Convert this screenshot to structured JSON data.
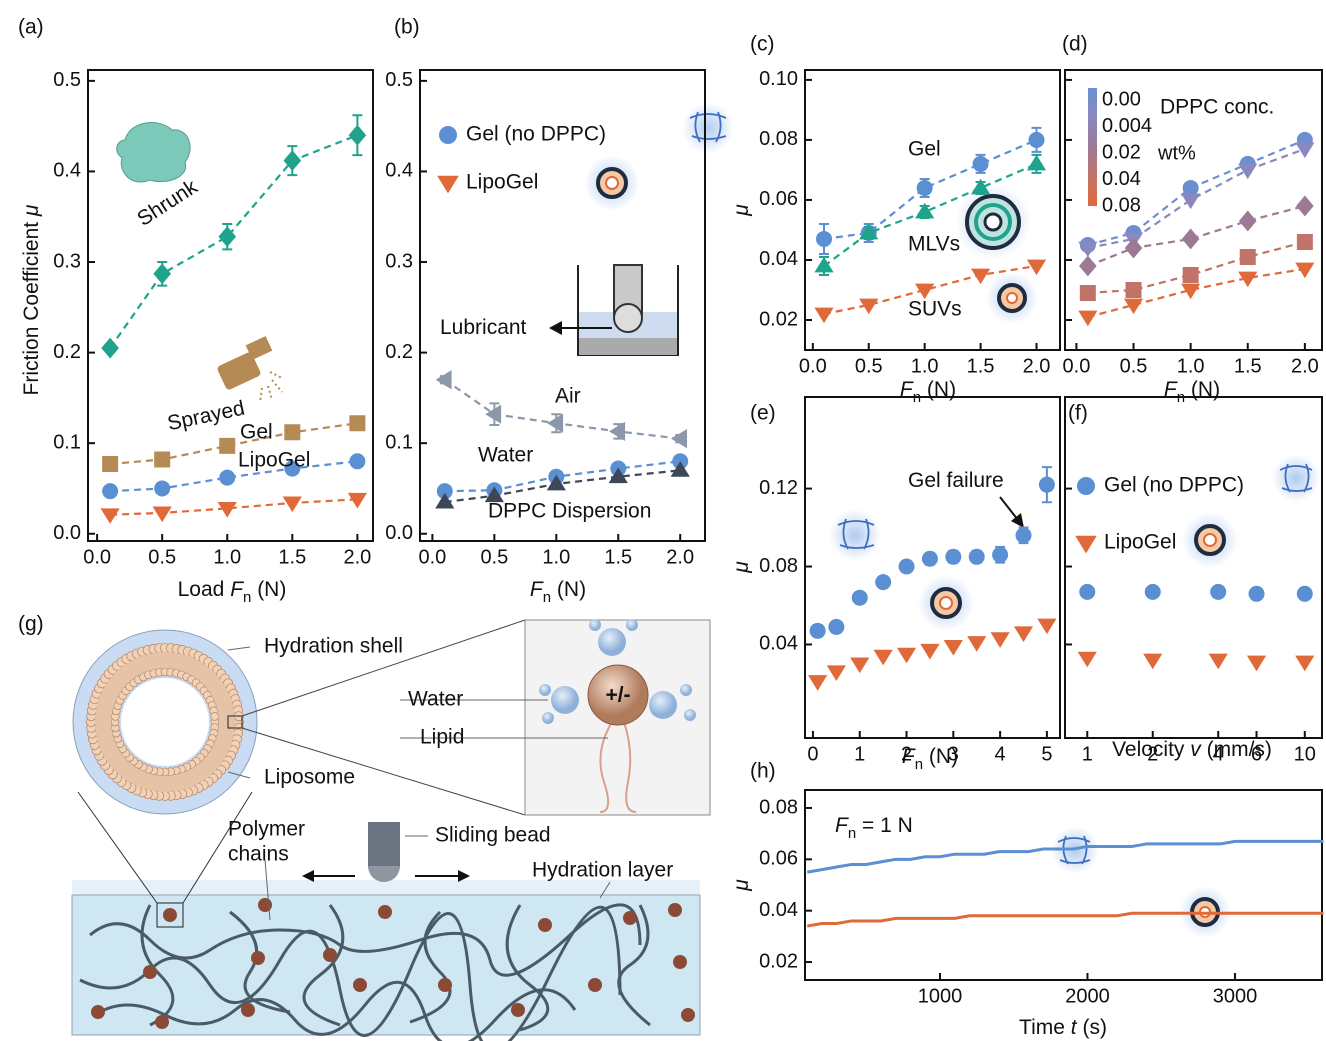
{
  "chart_data": [
    {
      "type": "scatter",
      "panel": "(a)",
      "xlabel": [
        {
          "text": "Load "
        },
        {
          "text": "F",
          "style": "italic"
        },
        {
          "text": "n",
          "style": "sub"
        },
        {
          "text": " (N)"
        }
      ],
      "ylabel": [
        {
          "text": "Friction Coefficient "
        },
        {
          "text": "μ",
          "style": "italic"
        }
      ],
      "xlim": [
        -0.07,
        2.12
      ],
      "ylim": [
        -0.008,
        0.512
      ],
      "xticks": [
        {
          "value": 0,
          "label": "0.0"
        },
        0.5,
        {
          "value": 1,
          "label": "1.0"
        },
        1.5,
        {
          "value": 2,
          "label": "2.0"
        }
      ],
      "yticks": [
        {
          "value": 0,
          "label": "0.0"
        },
        0.1,
        0.2,
        0.3,
        0.4,
        0.5
      ],
      "x": [
        0.1,
        0.5,
        1,
        1.5,
        2
      ],
      "series": [
        {
          "name": "Shrunk",
          "color": "#1fa38c",
          "marker": "diamond",
          "dashed": true,
          "values": [
            0.205,
            0.287,
            0.328,
            0.412,
            0.44
          ],
          "errors": [
            0.004,
            0.013,
            0.014,
            0.016,
            0.022
          ]
        },
        {
          "name": "Sprayed",
          "color": "#b58a55",
          "marker": "square",
          "dashed": true,
          "values": [
            0.077,
            0.082,
            0.097,
            0.112,
            0.122
          ]
        },
        {
          "name": "Gel",
          "color": "#5b8fd3",
          "marker": "circle",
          "dashed": true,
          "values": [
            0.047,
            0.05,
            0.062,
            0.072,
            0.08
          ]
        },
        {
          "name": "LipoGel",
          "color": "#e0693a",
          "marker": "triangle-down",
          "dashed": true,
          "values": [
            0.021,
            0.023,
            0.028,
            0.034,
            0.038
          ]
        }
      ]
    },
    {
      "type": "scatter",
      "panel": "(b)",
      "xlabel": [
        {
          "text": "F",
          "style": "italic"
        },
        {
          "text": "n",
          "style": "sub"
        },
        {
          "text": " (N)"
        }
      ],
      "xlim": [
        -0.1,
        2.2
      ],
      "ylim": [
        -0.008,
        0.512
      ],
      "xticks": [
        {
          "value": 0,
          "label": "0.0"
        },
        0.5,
        {
          "value": 1,
          "label": "1.0"
        },
        1.5,
        {
          "value": 2,
          "label": "2.0"
        }
      ],
      "yticks": [
        {
          "value": 0,
          "label": "0.0"
        },
        0.1,
        0.2,
        0.3,
        0.4,
        0.5
      ],
      "x": [
        0.1,
        0.5,
        1,
        1.5,
        2
      ],
      "series": [
        {
          "name": "Air",
          "color": "#8c98aa",
          "marker": "triangle-left",
          "dashed": true,
          "values": [
            0.17,
            0.132,
            0.122,
            0.113,
            0.105
          ],
          "errors": [
            0.004,
            0.012,
            0.01,
            0.008,
            0.004
          ]
        },
        {
          "name": "Water",
          "color": "#5b8fd3",
          "marker": "circle",
          "dashed": true,
          "values": [
            0.047,
            0.048,
            0.063,
            0.072,
            0.08
          ]
        },
        {
          "name": "DPPC Dispersion",
          "color": "#3d4756",
          "marker": "triangle-up",
          "dashed": true,
          "values": [
            0.035,
            0.042,
            0.055,
            0.063,
            0.07
          ]
        }
      ],
      "legend": [
        {
          "name": "Gel (no DPPC)",
          "color": "#5b8fd3",
          "marker": "circle"
        },
        {
          "name": "LipoGel",
          "color": "#e0693a",
          "marker": "triangle-down"
        }
      ],
      "annotations": [
        [
          {
            "text": "Lubricant"
          }
        ]
      ]
    },
    {
      "type": "scatter",
      "panel": "(c)",
      "xlabel": [
        {
          "text": "F",
          "style": "italic"
        },
        {
          "text": "n",
          "style": "sub"
        },
        {
          "text": " (N)"
        }
      ],
      "ylabel": [
        {
          "text": "μ",
          "style": "italic"
        }
      ],
      "xlim": [
        -0.07,
        2.21
      ],
      "ylim": [
        0.01,
        0.1033
      ],
      "xticks": [
        {
          "value": 0,
          "label": "0.0"
        },
        0.5,
        {
          "value": 1,
          "label": "1.0"
        },
        1.5,
        {
          "value": 2,
          "label": "2.0"
        }
      ],
      "yticks": [
        0.02,
        0.04,
        0.06,
        0.08,
        {
          "value": 0.1,
          "label": "0.10"
        }
      ],
      "x": [
        0.1,
        0.5,
        1,
        1.5,
        2
      ],
      "series": [
        {
          "name": "Gel",
          "color": "#5b8fd3",
          "marker": "circle",
          "dashed": true,
          "values": [
            0.047,
            0.049,
            0.064,
            0.072,
            0.08
          ],
          "errors": [
            0.005,
            0.003,
            0.003,
            0.003,
            0.004
          ]
        },
        {
          "name": "MLVs",
          "color": "#1fa38c",
          "marker": "triangle-up",
          "dashed": true,
          "values": [
            0.038,
            0.049,
            0.056,
            0.064,
            0.072
          ],
          "errors": [
            0.003,
            0.002,
            0.002,
            0.002,
            0.003
          ]
        },
        {
          "name": "SUVs",
          "color": "#e0693a",
          "marker": "triangle-down",
          "dashed": true,
          "values": [
            0.022,
            0.025,
            0.03,
            0.035,
            0.038
          ]
        }
      ]
    },
    {
      "type": "scatter",
      "panel": "(d)",
      "xlabel": [
        {
          "text": "F",
          "style": "italic"
        },
        {
          "text": "n",
          "style": "sub"
        },
        {
          "text": " (N)"
        }
      ],
      "xlim": [
        -0.1,
        2.15
      ],
      "ylim": [
        0.01,
        0.1033
      ],
      "xticks": [
        {
          "value": 0,
          "label": "0.0"
        },
        0.5,
        {
          "value": 1,
          "label": "1.0"
        },
        1.5,
        {
          "value": 2,
          "label": "2.0"
        }
      ],
      "yticks": [
        0.02,
        0.04,
        0.06,
        0.08,
        0.1
      ],
      "ytick_labels": false,
      "x": [
        0.1,
        0.5,
        1,
        1.5,
        2
      ],
      "colorbar": {
        "label": "DPPC conc.",
        "unit": "wt%"
      },
      "series": [
        {
          "name": "0.00",
          "color": "#6b8fd0",
          "marker": "circle",
          "dashed": true,
          "values": [
            0.045,
            0.049,
            0.064,
            0.072,
            0.08
          ]
        },
        {
          "name": "0.004",
          "color": "#8a88c0",
          "marker": "triangle-down",
          "dashed": true,
          "values": [
            0.044,
            0.047,
            0.06,
            0.07,
            0.077
          ]
        },
        {
          "name": "0.02",
          "color": "#9c7a96",
          "marker": "diamond",
          "dashed": true,
          "values": [
            0.038,
            0.044,
            0.047,
            0.053,
            0.058
          ]
        },
        {
          "name": "0.04",
          "color": "#c07468",
          "marker": "square",
          "dashed": true,
          "values": [
            0.029,
            0.03,
            0.035,
            0.041,
            0.046
          ]
        },
        {
          "name": "0.08",
          "color": "#e0693a",
          "marker": "triangle-down",
          "dashed": true,
          "values": [
            0.021,
            0.025,
            0.03,
            0.034,
            0.037
          ]
        }
      ]
    },
    {
      "type": "scatter",
      "panel": "(e)",
      "xlabel": [
        {
          "text": "F",
          "style": "italic"
        },
        {
          "text": "n",
          "style": "sub"
        },
        {
          "text": " (N)"
        }
      ],
      "ylabel": [
        {
          "text": "μ",
          "style": "italic"
        }
      ],
      "xlim": [
        -0.17,
        5.28
      ],
      "ylim": [
        -0.008,
        0.167
      ],
      "xticks": [
        0,
        1,
        2,
        3,
        4,
        5
      ],
      "yticks": [
        0.04,
        0.08,
        0.12
      ],
      "x": [
        0.1,
        0.5,
        1,
        1.5,
        2,
        2.5,
        3,
        3.5,
        4,
        4.5,
        5
      ],
      "series": [
        {
          "color": "#5b8fd3",
          "marker": "circle",
          "values": [
            0.047,
            0.049,
            0.064,
            0.072,
            0.08,
            0.084,
            0.085,
            0.085,
            0.086,
            0.096,
            0.122
          ],
          "errors": [
            0.003,
            0.002,
            0.002,
            0.002,
            0.002,
            0.003,
            0.003,
            0.003,
            0.004,
            0.004,
            0.009
          ]
        },
        {
          "color": "#e0693a",
          "marker": "triangle-down",
          "values": [
            0.021,
            0.026,
            0.03,
            0.034,
            0.035,
            0.037,
            0.039,
            0.041,
            0.043,
            0.046,
            0.05
          ]
        }
      ],
      "annotations": [
        [
          {
            "text": "Gel failure"
          }
        ]
      ]
    },
    {
      "type": "scatter",
      "panel": "(f)",
      "xlabel": [
        {
          "text": "Velocity "
        },
        {
          "text": "v",
          "style": "italic"
        },
        {
          "text": " (mm/s)"
        }
      ],
      "xscale": "log",
      "xlim": [
        0.79,
        12
      ],
      "ylim": [
        -0.008,
        0.167
      ],
      "xticks": [
        1,
        2,
        4,
        6,
        10
      ],
      "yticks": [
        0.04,
        0.08,
        0.12
      ],
      "ytick_labels": false,
      "x": [
        1,
        2,
        4,
        6,
        10
      ],
      "series": [
        {
          "name": "Gel (no DPPC)",
          "color": "#5b8fd3",
          "marker": "circle",
          "values": [
            0.067,
            0.067,
            0.067,
            0.066,
            0.066
          ]
        },
        {
          "name": "LipoGel",
          "color": "#e0693a",
          "marker": "triangle-down",
          "values": [
            0.033,
            0.032,
            0.032,
            0.031,
            0.031
          ]
        }
      ]
    },
    {
      "type": "line",
      "panel": "(h)",
      "xlabel": [
        {
          "text": "Time "
        },
        {
          "text": "t",
          "style": "italic"
        },
        {
          "text": " (s)"
        }
      ],
      "ylabel": [
        {
          "text": "μ",
          "style": "italic"
        }
      ],
      "xlim": [
        85,
        3590
      ],
      "ylim": [
        0.013,
        0.087
      ],
      "xticks": [
        1000,
        2000,
        3000
      ],
      "yticks": [
        0.02,
        0.04,
        0.06,
        0.08
      ],
      "x": [
        100,
        200,
        300,
        400,
        500,
        600,
        700,
        800,
        900,
        1000,
        1100,
        1200,
        1300,
        1400,
        1500,
        1600,
        1700,
        1800,
        1900,
        2000,
        2100,
        2200,
        2300,
        2400,
        2500,
        2600,
        2700,
        2800,
        2900,
        3000,
        3100,
        3200,
        3300,
        3400,
        3500,
        3600
      ],
      "series": [
        {
          "color": "#5b8fd3",
          "values": [
            0.055,
            0.056,
            0.057,
            0.058,
            0.058,
            0.059,
            0.06,
            0.06,
            0.061,
            0.061,
            0.062,
            0.062,
            0.062,
            0.063,
            0.063,
            0.063,
            0.064,
            0.064,
            0.064,
            0.065,
            0.065,
            0.065,
            0.065,
            0.066,
            0.066,
            0.066,
            0.066,
            0.066,
            0.066,
            0.067,
            0.067,
            0.067,
            0.067,
            0.067,
            0.067,
            0.067
          ]
        },
        {
          "color": "#e0693a",
          "values": [
            0.034,
            0.035,
            0.035,
            0.036,
            0.036,
            0.036,
            0.037,
            0.037,
            0.037,
            0.037,
            0.037,
            0.038,
            0.038,
            0.038,
            0.038,
            0.038,
            0.038,
            0.038,
            0.038,
            0.038,
            0.038,
            0.038,
            0.039,
            0.039,
            0.039,
            0.039,
            0.039,
            0.039,
            0.039,
            0.039,
            0.039,
            0.039,
            0.039,
            0.039,
            0.039,
            0.039
          ]
        }
      ],
      "annotations": [
        [
          {
            "text": "F",
            "style": "italic"
          },
          {
            "text": "n",
            "style": "sub"
          },
          {
            "text": " = 1 N"
          }
        ]
      ]
    }
  ],
  "diagram": {
    "panel": "(g)",
    "hydration_shell": "Hydration shell",
    "water": "Water",
    "lipid": "Lipid",
    "charge": "+/-",
    "liposome": "Liposome",
    "polymer_chains": [
      "Polymer",
      "chains"
    ],
    "sliding_bead": "Sliding bead",
    "hydration_layer": "Hydration layer"
  }
}
